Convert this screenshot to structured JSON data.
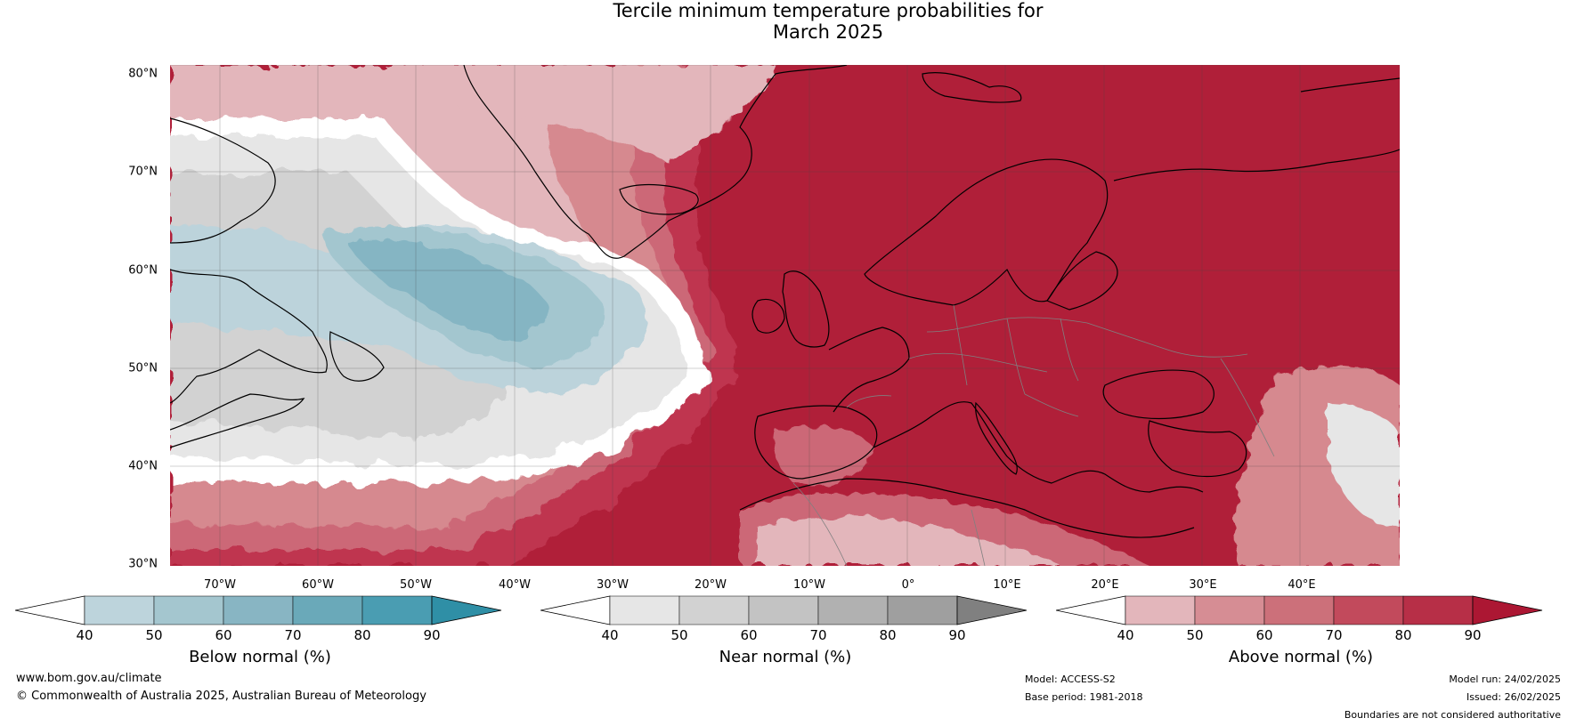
{
  "title": {
    "line1": "Tercile minimum temperature probabilities for",
    "line2": "March 2025"
  },
  "map": {
    "lat_labels": [
      "80°N",
      "70°N",
      "60°N",
      "50°N",
      "40°N",
      "30°N"
    ],
    "lon_labels": [
      "70°W",
      "60°W",
      "50°W",
      "40°W",
      "30°W",
      "20°W",
      "10°W",
      "0°",
      "10°E",
      "20°E",
      "30°E",
      "40°E"
    ],
    "colors": {
      "ocean_strong_above": "#b01f39",
      "above_80": "#bf3550",
      "above_70": "#cc6877",
      "above_60": "#d6898f",
      "above_50": "#e3b6bb",
      "near_white": "#ffffff",
      "near_50": "#e6e6e6",
      "near_60": "#d2d2d2",
      "near_70": "#bdbdbd",
      "below_50": "#bcd3db",
      "below_60": "#a3c6cf",
      "below_70": "#85b5c3",
      "below_80": "#6aa9b9",
      "coast": "#000000",
      "border": "#808080"
    }
  },
  "colorbars": [
    {
      "name": "below",
      "title": "Below normal (%)",
      "ticks": [
        "40",
        "50",
        "60",
        "70",
        "80",
        "90"
      ],
      "colors": [
        "#ffffff",
        "#bdd4dc",
        "#a4c6cf",
        "#88b5c3",
        "#6aa9b9",
        "#4a9db2",
        "#2f8fa6"
      ]
    },
    {
      "name": "near",
      "title": "Near normal (%)",
      "ticks": [
        "40",
        "50",
        "60",
        "70",
        "80",
        "90"
      ],
      "colors": [
        "#ffffff",
        "#e6e6e6",
        "#d2d2d2",
        "#c3c3c3",
        "#b1b1b1",
        "#9f9f9f",
        "#808080"
      ]
    },
    {
      "name": "above",
      "title": "Above normal (%)",
      "ticks": [
        "40",
        "50",
        "60",
        "70",
        "80",
        "90"
      ],
      "colors": [
        "#ffffff",
        "#e3b6bb",
        "#d68d94",
        "#cc707a",
        "#c24a5c",
        "#b72f47",
        "#ac1733"
      ]
    }
  ],
  "footer": {
    "website": "www.bom.gov.au/climate",
    "copyright": "© Commonwealth of Australia 2025, Australian Bureau of Meteorology",
    "model": "Model: ACCESS-S2",
    "base_period": "Base period: 1981-2018",
    "model_run": "Model run: 24/02/2025",
    "issued": "Issued: 26/02/2025",
    "disclaimer": "Boundaries are not considered authoritative"
  }
}
